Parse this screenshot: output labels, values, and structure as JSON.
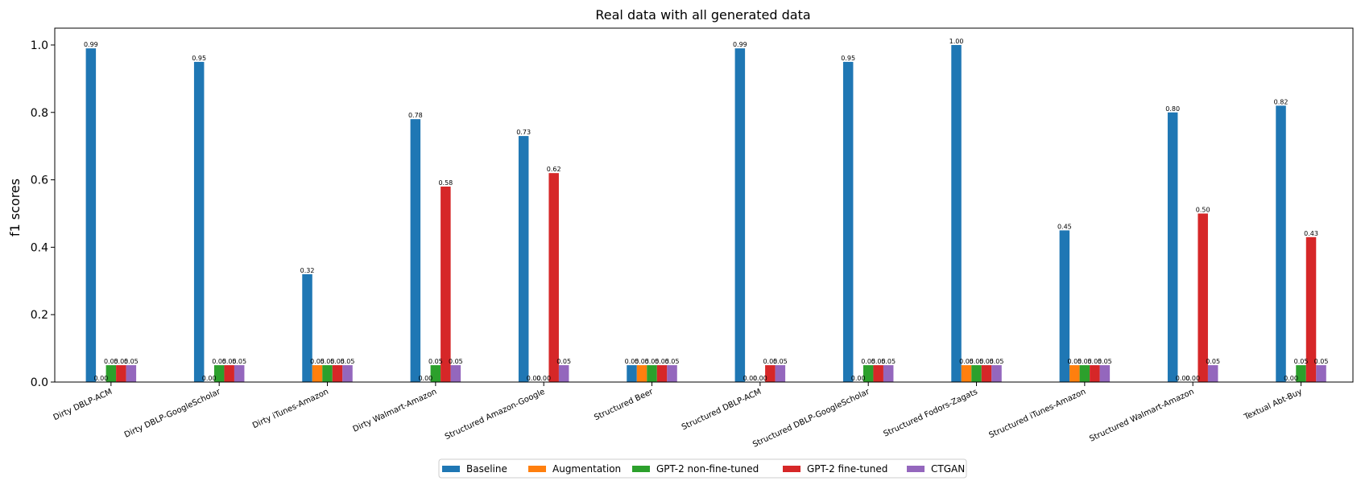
{
  "chart_data": {
    "type": "bar",
    "title": "Real data with all generated data",
    "xlabel": "",
    "ylabel": "f1 scores",
    "ylim": [
      0,
      1.05
    ],
    "yticks": [
      "0.0",
      "0.2",
      "0.4",
      "0.6",
      "0.8",
      "1.0"
    ],
    "grid": false,
    "legend_position": "bottom-center",
    "categories": [
      "Dirty DBLP-ACM",
      "Dirty DBLP-GoogleScholar",
      "Dirty iTunes-Amazon",
      "Dirty Walmart-Amazon",
      "Structured Amazon-Google",
      "Structured Beer",
      "Structured DBLP-ACM",
      "Structured DBLP-GoogleScholar",
      "Structured Fodors-Zagats",
      "Structured iTunes-Amazon",
      "Structured Walmart-Amazon",
      "Textual Abt-Buy"
    ],
    "series": [
      {
        "name": "Baseline",
        "color": "#1f77b4",
        "values": [
          0.99,
          0.95,
          0.32,
          0.78,
          0.73,
          0.05,
          0.99,
          0.95,
          1.0,
          0.45,
          0.8,
          0.82
        ],
        "labels": [
          "0.99",
          "0.95",
          "0.32",
          "0.78",
          "0.73",
          "0.05",
          "0.99",
          "0.95",
          "1.00",
          "0.45",
          "0.80",
          "0.82"
        ]
      },
      {
        "name": "Augmentation",
        "color": "#ff7f0e",
        "values": [
          0.0,
          0.0,
          0.05,
          0.0,
          0.0,
          0.05,
          0.0,
          0.0,
          0.05,
          0.05,
          0.0,
          0.0
        ],
        "labels": [
          "0.00",
          "0.00",
          "0.05",
          "0.00",
          "0.00",
          "0.05",
          "0.00",
          "0.00",
          "0.05",
          "0.05",
          "0.00",
          "0.00"
        ]
      },
      {
        "name": "GPT-2 non-fine-tuned",
        "color": "#2ca02c",
        "values": [
          0.05,
          0.05,
          0.05,
          0.05,
          0.0,
          0.05,
          0.0,
          0.05,
          0.05,
          0.05,
          0.0,
          0.05
        ],
        "labels": [
          "0.05",
          "0.05",
          "0.05",
          "0.05",
          "0.00",
          "0.05",
          "0.00",
          "0.05",
          "0.05",
          "0.05",
          "0.00",
          "0.05"
        ]
      },
      {
        "name": "GPT-2 fine-tuned",
        "color": "#d62728",
        "values": [
          0.05,
          0.05,
          0.05,
          0.58,
          0.62,
          0.05,
          0.05,
          0.05,
          0.05,
          0.05,
          0.5,
          0.43
        ],
        "labels": [
          "0.05",
          "0.05",
          "0.05",
          "0.58",
          "0.62",
          "0.05",
          "0.05",
          "0.05",
          "0.05",
          "0.05",
          "0.50",
          "0.43"
        ]
      },
      {
        "name": "CTGAN",
        "color": "#9467bd",
        "values": [
          0.05,
          0.05,
          0.05,
          0.05,
          0.05,
          0.05,
          0.05,
          0.05,
          0.05,
          0.05,
          0.05,
          0.05
        ],
        "labels": [
          "0.05",
          "0.05",
          "0.05",
          "0.05",
          "0.05",
          "0.05",
          "0.05",
          "0.05",
          "0.05",
          "0.05",
          "0.05",
          "0.05"
        ]
      }
    ]
  }
}
